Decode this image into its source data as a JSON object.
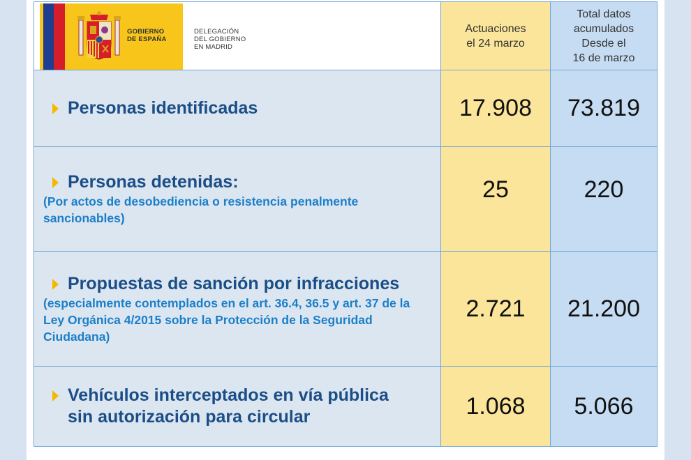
{
  "header": {
    "logo": {
      "line1": "GOBIERNO",
      "line2": "DE ESPAÑA",
      "delegation1": "DELEGACIÓN",
      "delegation2": "DEL GOBIERNO",
      "delegation3": "EN MADRID"
    },
    "col1_line1": "Actuaciones",
    "col1_line2": "el 24 marzo",
    "col2_line1": "Total datos",
    "col2_line2": "acumulados",
    "col2_line3": "Desde el",
    "col2_line4": "16 de marzo"
  },
  "rows": [
    {
      "title": "Personas identificadas",
      "sub": "",
      "day": "17.908",
      "total": "73.819"
    },
    {
      "title": "Personas detenidas:",
      "sub": "(Por actos de desobediencia o resistencia penalmente sancionables)",
      "day": "25",
      "total": "220"
    },
    {
      "title": "Propuestas de sanción por infracciones",
      "sub": "(especialmente contemplados en el art. 36.4, 36.5 y art. 37 de la Ley Orgánica 4/2015 sobre la Protección de la Seguridad Ciudadana)",
      "day": "2.721",
      "total": "21.200"
    },
    {
      "title": "Vehículos interceptados en vía pública sin autorización para circular",
      "sub": "",
      "day": "1.068",
      "total": "5.066"
    }
  ],
  "colors": {
    "label_bg": "#dce6f1",
    "col1_bg": "#fbe59a",
    "col2_bg": "#c6dcf2",
    "title_text": "#1b4e87",
    "sub_text": "#1b7fc8",
    "arrow": "#f5b800",
    "border": "#6fa5d6"
  },
  "icons": [
    "spain-flag-icon",
    "coat-of-arms-icon",
    "arrow-bullet-icon"
  ]
}
